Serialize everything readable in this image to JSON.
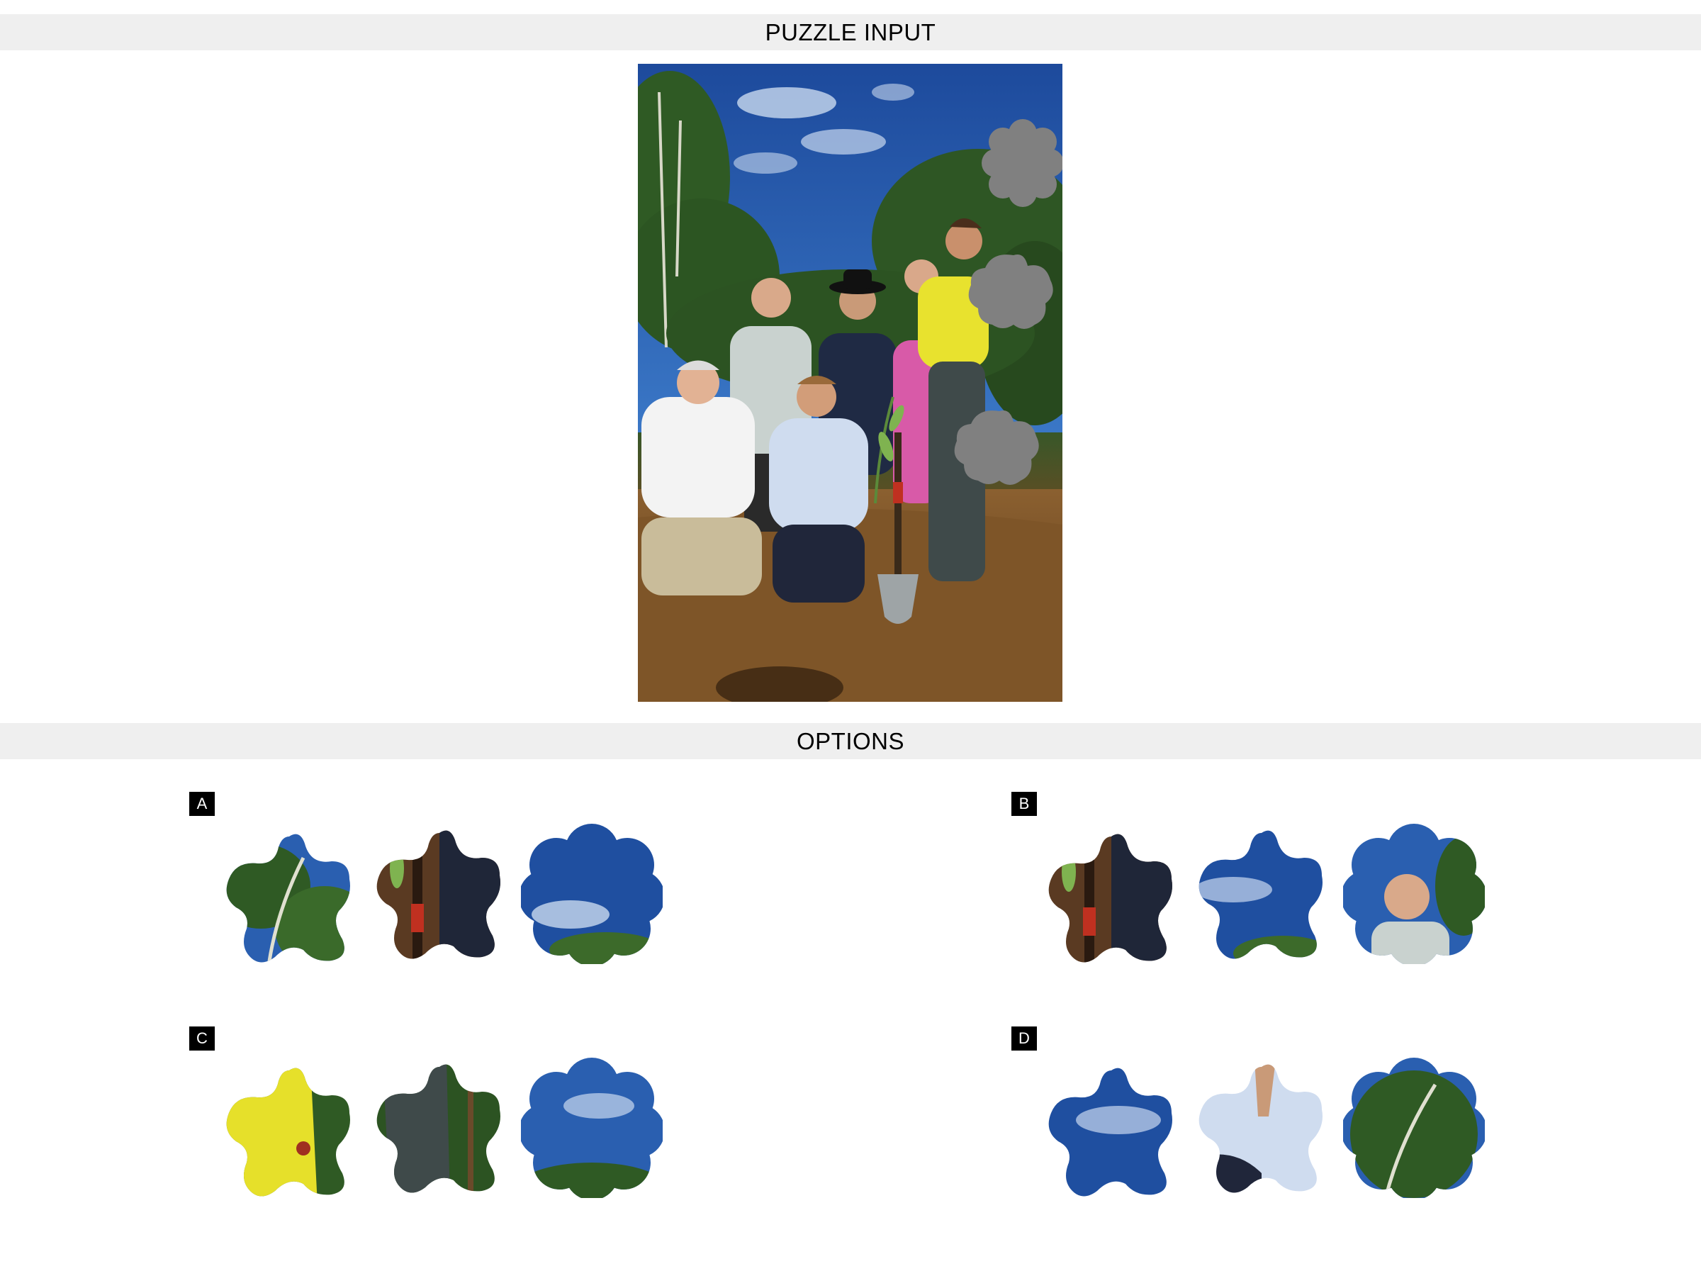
{
  "headers": {
    "puzzle_input": "PUZZLE INPUT",
    "options": "OPTIONS"
  },
  "options": [
    {
      "label": "A",
      "pieces": [
        {
          "shape": "star",
          "content": "tree canopy against blue sky"
        },
        {
          "shape": "star",
          "content": "seedling and shovel handle"
        },
        {
          "shape": "flower",
          "content": "blue sky with clouds"
        }
      ]
    },
    {
      "label": "B",
      "pieces": [
        {
          "shape": "star",
          "content": "seedling and shovel handle"
        },
        {
          "shape": "star",
          "content": "blue sky with clouds"
        },
        {
          "shape": "flower",
          "content": "man in light shirt"
        }
      ]
    },
    {
      "label": "C",
      "pieces": [
        {
          "shape": "star",
          "content": "yellow shirt"
        },
        {
          "shape": "star",
          "content": "dark trousers and trees"
        },
        {
          "shape": "flower",
          "content": "blue sky with tree tops"
        }
      ]
    },
    {
      "label": "D",
      "pieces": [
        {
          "shape": "star",
          "content": "blue sky with clouds"
        },
        {
          "shape": "star",
          "content": "light blue shirt"
        },
        {
          "shape": "flower",
          "content": "tree canopy"
        }
      ]
    }
  ],
  "colors": {
    "header_bg": "#efefef",
    "missing_piece": "#808080",
    "label_bg": "#000000",
    "sky": "#2a5fb0"
  }
}
